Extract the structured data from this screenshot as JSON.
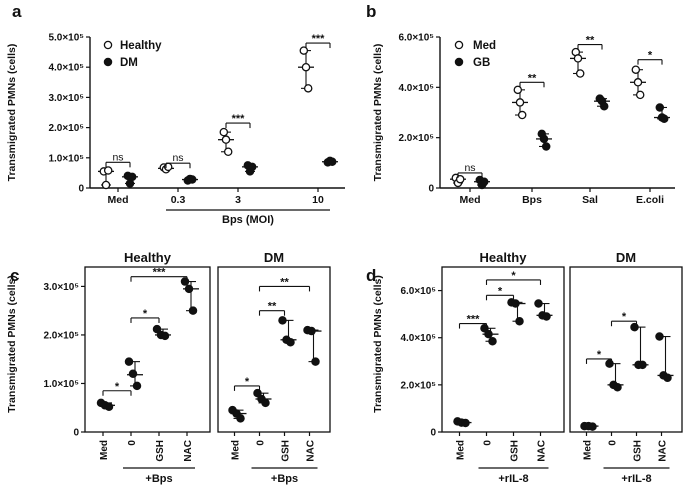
{
  "chart_data": [
    {
      "panel": "a",
      "type": "scatter",
      "ylabel": "Transmigrated PMNs (cells)",
      "xlabel": "Bps (MOI)",
      "ylim": [
        0,
        500000
      ],
      "yticks": [
        0,
        100000,
        200000,
        300000,
        400000,
        500000
      ],
      "ytick_labels": [
        "0",
        "1.0×10⁵",
        "2.0×10⁵",
        "3.0×10⁵",
        "4.0×10⁵",
        "5.0×10⁵"
      ],
      "categories": [
        "Med",
        "0.3",
        "3",
        "10"
      ],
      "legend": {
        "placement": "top-left",
        "entries": [
          "Healthy",
          "DM"
        ]
      },
      "series": [
        {
          "name": "Healthy",
          "marker": "open-circle",
          "points": [
            [
              55000,
              10000,
              58000
            ],
            [
              68000,
              62000,
              70000
            ],
            [
              185000,
              160000,
              120000
            ],
            [
              455000,
              400000,
              330000
            ]
          ],
          "center": [
            55000,
            65000,
            160000,
            400000
          ],
          "err": [
            [
              10000,
              58000
            ],
            [
              62000,
              70000
            ],
            [
              120000,
              185000
            ],
            [
              330000,
              455000
            ]
          ]
        },
        {
          "name": "DM",
          "marker": "filled-circle",
          "points": [
            [
              40000,
              15000,
              37000
            ],
            [
              25000,
              30000,
              28000
            ],
            [
              75000,
              55000,
              70000
            ],
            [
              85000,
              90000,
              87000
            ]
          ],
          "center": [
            37000,
            28000,
            70000,
            87000
          ],
          "err": [
            [
              15000,
              40000
            ],
            [
              25000,
              30000
            ],
            [
              55000,
              75000
            ],
            [
              85000,
              90000
            ]
          ]
        }
      ],
      "annotations": [
        "ns",
        "ns",
        "***",
        "***"
      ]
    },
    {
      "panel": "b",
      "type": "scatter",
      "ylabel": "Transmigrated PMNs (cells)",
      "ylim": [
        0,
        600000
      ],
      "yticks": [
        0,
        200000,
        400000,
        600000
      ],
      "ytick_labels": [
        "0",
        "2.0×10⁵",
        "4.0×10⁵",
        "6.0×10⁵"
      ],
      "categories": [
        "Med",
        "Bps",
        "Sal",
        "E.coli"
      ],
      "legend": {
        "placement": "top-left",
        "entries": [
          "Med",
          "GB"
        ]
      },
      "series": [
        {
          "name": "Med",
          "marker": "open-circle",
          "points": [
            [
              40000,
              20000,
              35000
            ],
            [
              390000,
              340000,
              290000
            ],
            [
              540000,
              515000,
              455000
            ],
            [
              470000,
              420000,
              370000
            ]
          ],
          "center": [
            35000,
            340000,
            515000,
            420000
          ],
          "err": [
            [
              20000,
              40000
            ],
            [
              290000,
              390000
            ],
            [
              455000,
              540000
            ],
            [
              370000,
              470000
            ]
          ]
        },
        {
          "name": "GB",
          "marker": "filled-circle",
          "points": [
            [
              32000,
              12000,
              25000
            ],
            [
              215000,
              195000,
              165000
            ],
            [
              355000,
              345000,
              325000
            ],
            [
              320000,
              280000,
              275000
            ]
          ],
          "center": [
            25000,
            195000,
            345000,
            280000
          ],
          "err": [
            [
              12000,
              32000
            ],
            [
              165000,
              215000
            ],
            [
              325000,
              355000
            ],
            [
              275000,
              320000
            ]
          ]
        }
      ],
      "annotations": [
        "ns",
        "**",
        "**",
        "*"
      ]
    },
    {
      "panel": "c",
      "type": "scatter",
      "ylabel": "Transmigrated PMNs (cells)",
      "ylim": [
        0,
        340000
      ],
      "yticks": [
        0,
        100000,
        200000,
        300000
      ],
      "ytick_labels": [
        "0",
        "1.0×10⁵",
        "2.0×10⁵",
        "3.0×10⁵"
      ],
      "categories": [
        "Med",
        "0",
        "GSH",
        "NAC"
      ],
      "group_label": "+Bps",
      "subplots": [
        {
          "title": "Healthy",
          "points": [
            [
              60000,
              55000,
              52000
            ],
            [
              145000,
              120000,
              95000
            ],
            [
              212000,
              200000,
              198000
            ],
            [
              310000,
              295000,
              250000
            ]
          ],
          "center": [
            55000,
            118000,
            200000,
            295000
          ],
          "err": [
            [
              52000,
              60000
            ],
            [
              95000,
              145000
            ],
            [
              198000,
              212000
            ],
            [
              250000,
              310000
            ]
          ],
          "annotations": [
            "*",
            "*",
            "***"
          ]
        },
        {
          "title": "DM",
          "points": [
            [
              45000,
              38000,
              28000
            ],
            [
              80000,
              68000,
              60000
            ],
            [
              230000,
              190000,
              185000
            ],
            [
              210000,
              208000,
              145000
            ]
          ],
          "center": [
            38000,
            68000,
            190000,
            208000
          ],
          "err": [
            [
              28000,
              45000
            ],
            [
              60000,
              80000
            ],
            [
              185000,
              230000
            ],
            [
              145000,
              210000
            ]
          ],
          "annotations": [
            "*",
            "**",
            "**"
          ]
        }
      ]
    },
    {
      "panel": "d",
      "type": "scatter",
      "ylabel": "Transmigrated PMNs (cells)",
      "ylim": [
        0,
        700000
      ],
      "yticks": [
        0,
        200000,
        400000,
        600000
      ],
      "ytick_labels": [
        "0",
        "2.0×10⁵",
        "4.0×10⁵",
        "6.0×10⁵"
      ],
      "categories": [
        "Med",
        "0",
        "GSH",
        "NAC"
      ],
      "group_label": "+rIL-8",
      "subplots": [
        {
          "title": "Healthy",
          "points": [
            [
              45000,
              40000,
              38000
            ],
            [
              440000,
              415000,
              385000
            ],
            [
              550000,
              545000,
              470000
            ],
            [
              545000,
              495000,
              490000
            ]
          ],
          "center": [
            40000,
            415000,
            545000,
            495000
          ],
          "err": [
            [
              38000,
              45000
            ],
            [
              385000,
              440000
            ],
            [
              470000,
              550000
            ],
            [
              490000,
              545000
            ]
          ],
          "annotations": [
            "***",
            "*",
            "*"
          ]
        },
        {
          "title": "DM",
          "points": [
            [
              25000,
              25000,
              23000
            ],
            [
              290000,
              200000,
              190000
            ],
            [
              445000,
              285000,
              285000
            ],
            [
              405000,
              240000,
              230000
            ]
          ],
          "center": [
            25000,
            200000,
            285000,
            240000
          ],
          "err": [
            [
              23000,
              25000
            ],
            [
              190000,
              290000
            ],
            [
              285000,
              445000
            ],
            [
              230000,
              405000
            ]
          ],
          "annotations": [
            "*",
            "*"
          ]
        }
      ]
    }
  ]
}
